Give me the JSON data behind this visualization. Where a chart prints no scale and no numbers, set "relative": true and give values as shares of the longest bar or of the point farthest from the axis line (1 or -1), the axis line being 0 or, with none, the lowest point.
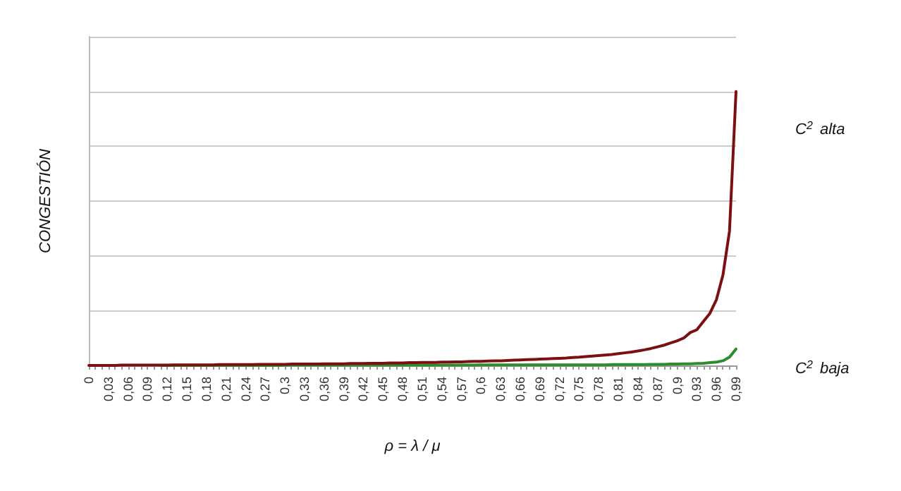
{
  "chart_data": {
    "type": "line",
    "relative": true,
    "xlabel": "ρ = λ / μ",
    "ylabel": "CONGESTIÓN",
    "categories": [
      "0",
      null,
      null,
      "0,03",
      null,
      null,
      "0,06",
      null,
      null,
      "0,09",
      null,
      null,
      "0,12",
      null,
      null,
      "0,15",
      null,
      null,
      "0,18",
      null,
      null,
      "0,21",
      null,
      null,
      "0,24",
      null,
      null,
      "0,27",
      null,
      null,
      "0,3",
      null,
      null,
      "0,33",
      null,
      null,
      "0,36",
      null,
      null,
      "0,39",
      null,
      null,
      "0,42",
      null,
      null,
      "0,45",
      null,
      null,
      "0,48",
      null,
      null,
      "0,51",
      null,
      null,
      "0,54",
      null,
      null,
      "0,57",
      null,
      null,
      "0,6",
      null,
      null,
      "0,63",
      null,
      null,
      "0,66",
      null,
      null,
      "0,69",
      null,
      null,
      "0,72",
      null,
      null,
      "0,75",
      null,
      null,
      "0,78",
      null,
      null,
      "0,81",
      null,
      null,
      "0,84",
      null,
      null,
      "0,87",
      null,
      null,
      "0,9",
      null,
      null,
      "0,93",
      null,
      null,
      "0,96",
      null,
      null,
      "0,99"
    ],
    "series": [
      {
        "name": "C$^{2}$ alta",
        "color": "#7b1010",
        "values": [
          0,
          0,
          0,
          0,
          0,
          0.001,
          0.001,
          0.001,
          0.001,
          0.001,
          0.001,
          0.001,
          0.001,
          0.002,
          0.002,
          0.002,
          0.002,
          0.002,
          0.002,
          0.002,
          0.003,
          0.003,
          0.003,
          0.003,
          0.003,
          0.003,
          0.004,
          0.004,
          0.004,
          0.004,
          0.004,
          0.005,
          0.005,
          0.005,
          0.005,
          0.005,
          0.006,
          0.006,
          0.006,
          0.006,
          0.007,
          0.007,
          0.007,
          0.008,
          0.008,
          0.008,
          0.009,
          0.009,
          0.009,
          0.01,
          0.01,
          0.011,
          0.011,
          0.011,
          0.012,
          0.012,
          0.013,
          0.013,
          0.014,
          0.015,
          0.015,
          0.016,
          0.017,
          0.017,
          0.018,
          0.019,
          0.02,
          0.021,
          0.022,
          0.023,
          0.024,
          0.025,
          0.026,
          0.027,
          0.029,
          0.03,
          0.032,
          0.034,
          0.036,
          0.038,
          0.04,
          0.043,
          0.046,
          0.049,
          0.053,
          0.057,
          0.062,
          0.068,
          0.074,
          0.082,
          0.09,
          0.1,
          0.12,
          0.13,
          0.16,
          0.19,
          0.24,
          0.33,
          0.49,
          1
        ]
      },
      {
        "name": "C$^{2}$ baja",
        "color": "#2e8b2e",
        "values": [
          null,
          null,
          null,
          null,
          null,
          null,
          null,
          null,
          null,
          null,
          null,
          0,
          0,
          0,
          0,
          0,
          0,
          0,
          0,
          0,
          0,
          0,
          0,
          0,
          0,
          0,
          0,
          0,
          0,
          0,
          0.001,
          0.001,
          0.001,
          0.001,
          0.001,
          0.001,
          0.001,
          0.001,
          0.001,
          0.001,
          0.001,
          0.001,
          0.001,
          0.001,
          0.001,
          0.001,
          0.001,
          0.001,
          0.001,
          0.001,
          0.001,
          0.001,
          0.001,
          0.001,
          0.001,
          0.001,
          0.001,
          0.001,
          0.001,
          0.001,
          0.002,
          0.002,
          0.002,
          0.002,
          0.002,
          0.002,
          0.002,
          0.002,
          0.002,
          0.002,
          0.002,
          0.002,
          0.002,
          0.002,
          0.002,
          0.002,
          0.002,
          0.002,
          0.002,
          0.002,
          0.003,
          0.003,
          0.003,
          0.003,
          0.003,
          0.003,
          0.004,
          0.004,
          0.004,
          0.005,
          0.005,
          0.006,
          0.006,
          0.007,
          0.008,
          0.01,
          0.012,
          0.017,
          0.03,
          0.06
        ]
      }
    ],
    "grid": "y",
    "legend": false,
    "marker": "none",
    "line_style": "solid"
  }
}
